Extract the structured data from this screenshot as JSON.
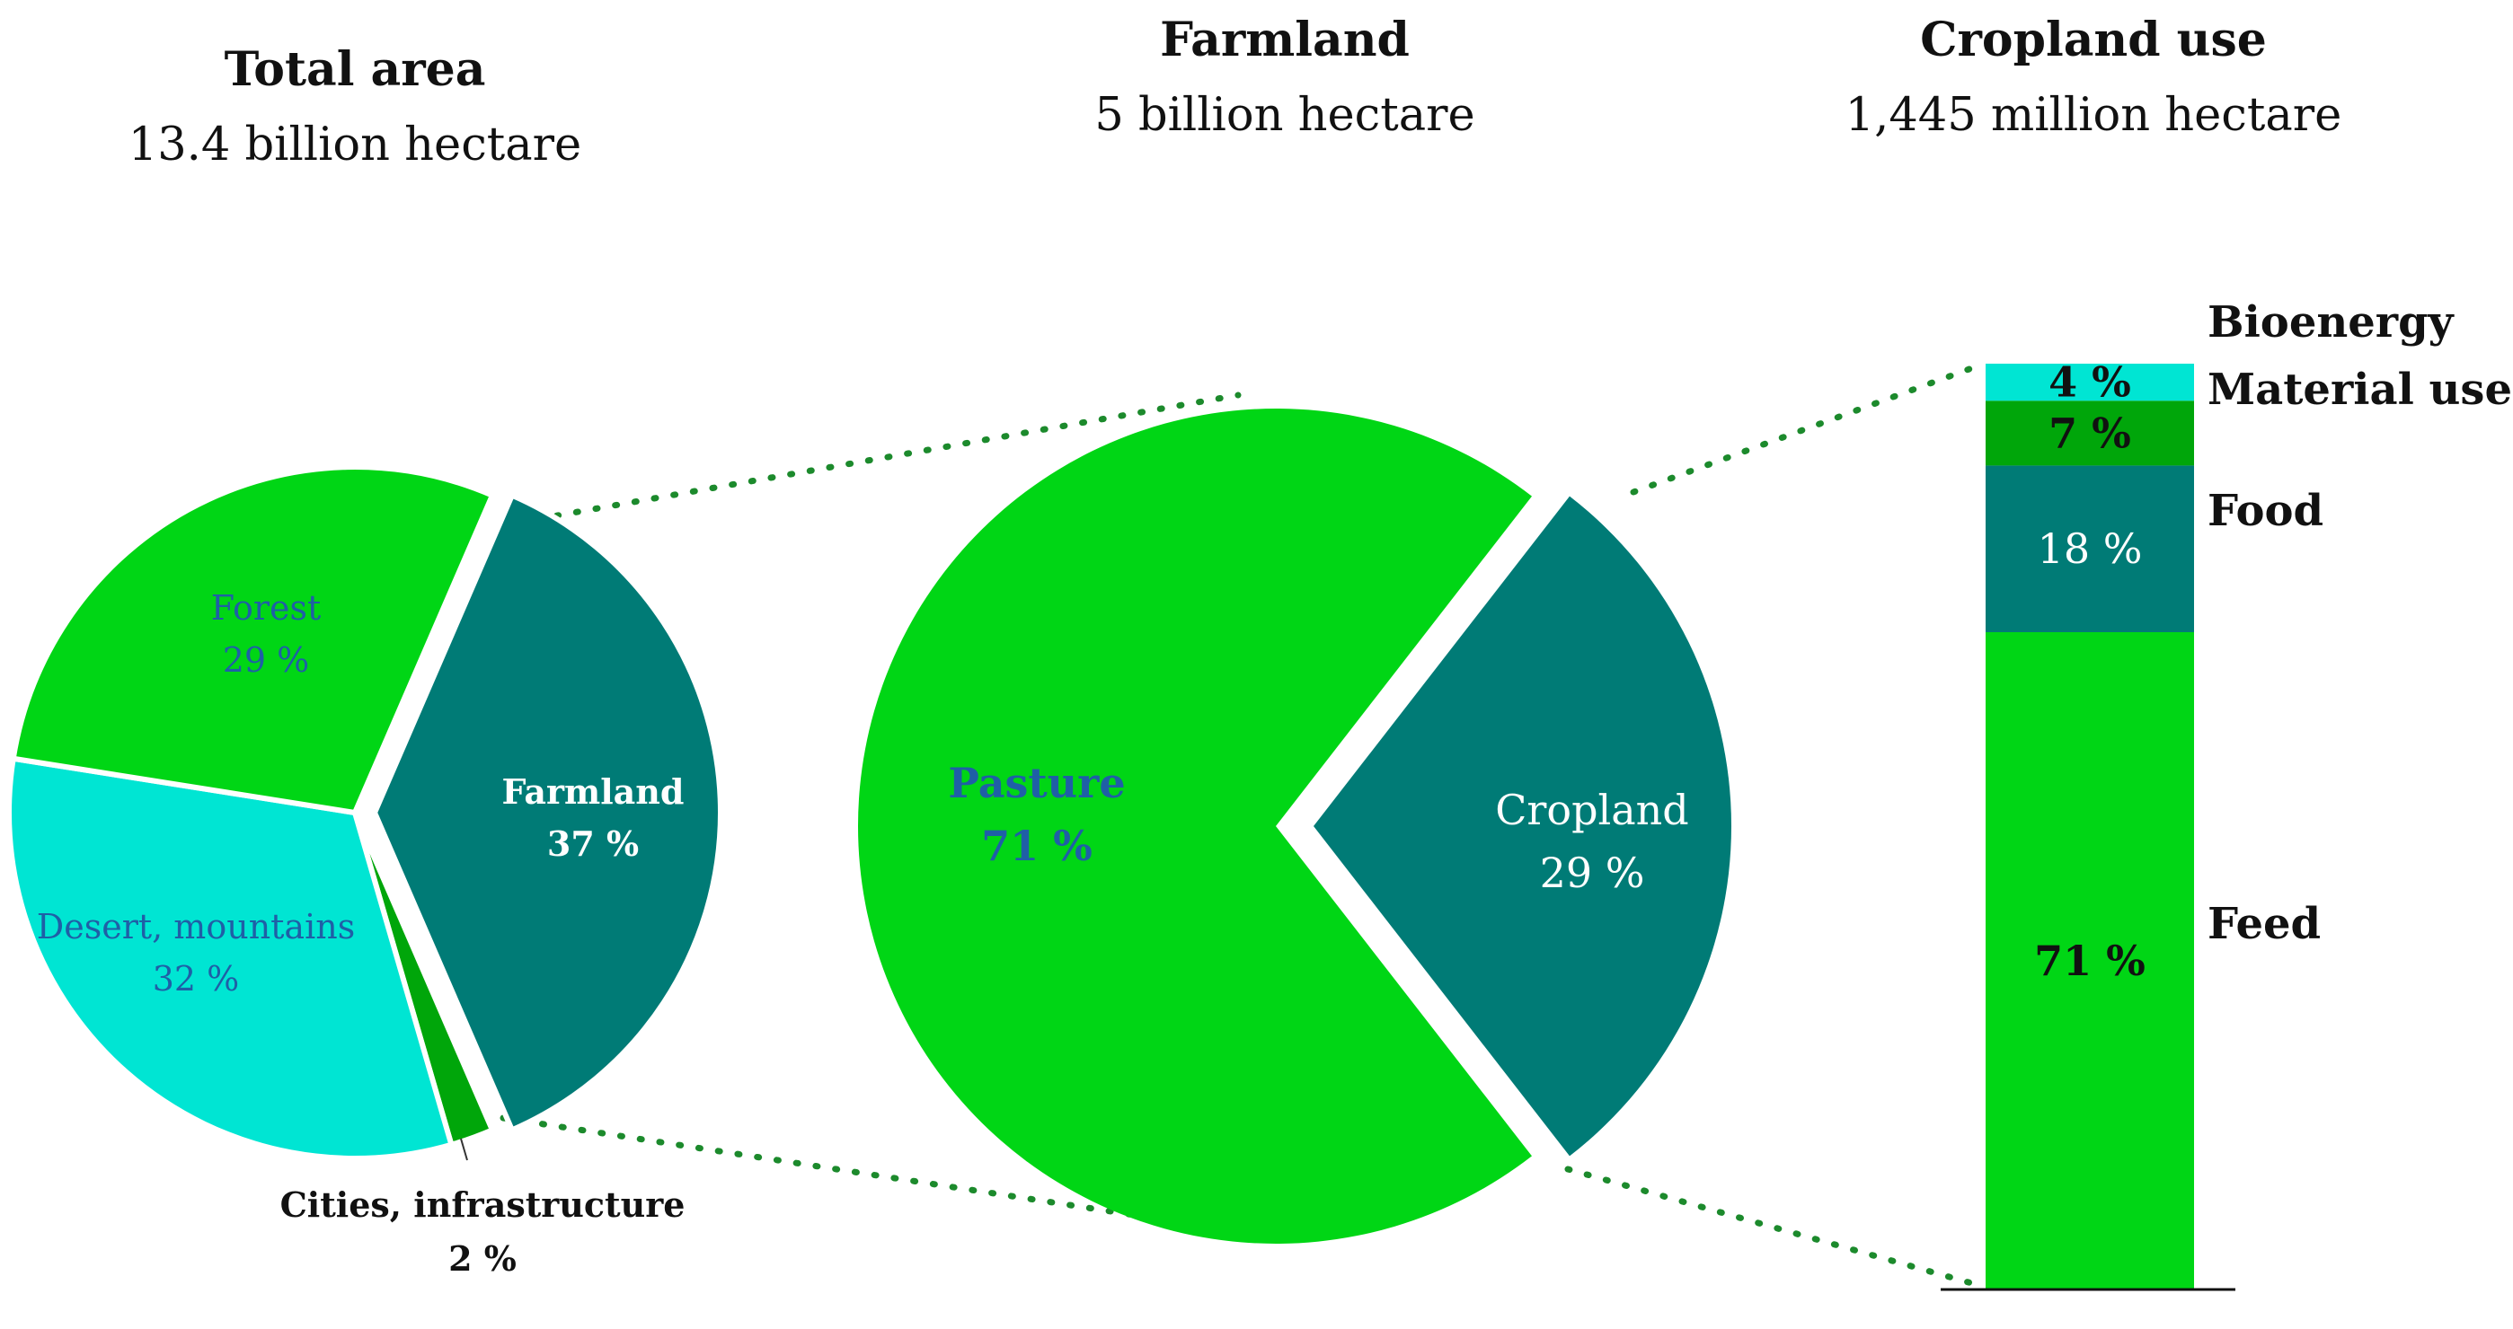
{
  "headings": {
    "total": {
      "title": "Total area",
      "subtitle": "13.4 billion hectare"
    },
    "farmland": {
      "title": "Farmland",
      "subtitle": "5 billion hectare"
    },
    "cropland": {
      "title": "Cropland use",
      "subtitle": "1,445 million hectare"
    }
  },
  "colors": {
    "green": "#00d615",
    "teal": "#007b76",
    "cyan": "#00e5d3",
    "dark_green": "#00a60a",
    "label_blue": "#1f5fa6",
    "connector": "#1c8a2c"
  },
  "chart_data": [
    {
      "type": "pie",
      "name": "Total area",
      "slices": [
        {
          "label": "Farmland",
          "pct_label": "37 %",
          "value": 37,
          "color": "#007b76",
          "text_color": "#ffffff",
          "exploded": true
        },
        {
          "label": "Cities, infrastructure",
          "pct_label": "2 %",
          "value": 2,
          "color": "#00a60a",
          "text_color": "#111111"
        },
        {
          "label": "Desert, mountains",
          "pct_label": "32 %",
          "value": 32,
          "color": "#00e5d3",
          "text_color": "#1f5fa6"
        },
        {
          "label": "Forest",
          "pct_label": "29 %",
          "value": 29,
          "color": "#00d615",
          "text_color": "#1f5fa6"
        }
      ]
    },
    {
      "type": "pie",
      "name": "Farmland",
      "slices": [
        {
          "label": "Cropland",
          "pct_label": "29 %",
          "value": 29,
          "color": "#007b76",
          "text_color": "#ffffff",
          "exploded": true
        },
        {
          "label": "Pasture",
          "pct_label": "71 %",
          "value": 71,
          "color": "#00d615",
          "text_color": "#1f5fa6"
        }
      ]
    },
    {
      "type": "bar",
      "stacked": true,
      "name": "Cropland use",
      "segments": [
        {
          "label": "Feed",
          "pct_label": "71 %",
          "value": 71,
          "color": "#00d615",
          "text_color": "#111111"
        },
        {
          "label": "Food",
          "pct_label": "18 %",
          "value": 18,
          "color": "#007b76",
          "text_color": "#ffffff"
        },
        {
          "label": "Material use",
          "pct_label": "7 %",
          "value": 7,
          "color": "#00a60a",
          "text_color": "#111111"
        },
        {
          "label": "Bioenergy",
          "pct_label": "4 %",
          "value": 4,
          "color": "#00e5d3",
          "text_color": "#111111"
        }
      ]
    }
  ]
}
